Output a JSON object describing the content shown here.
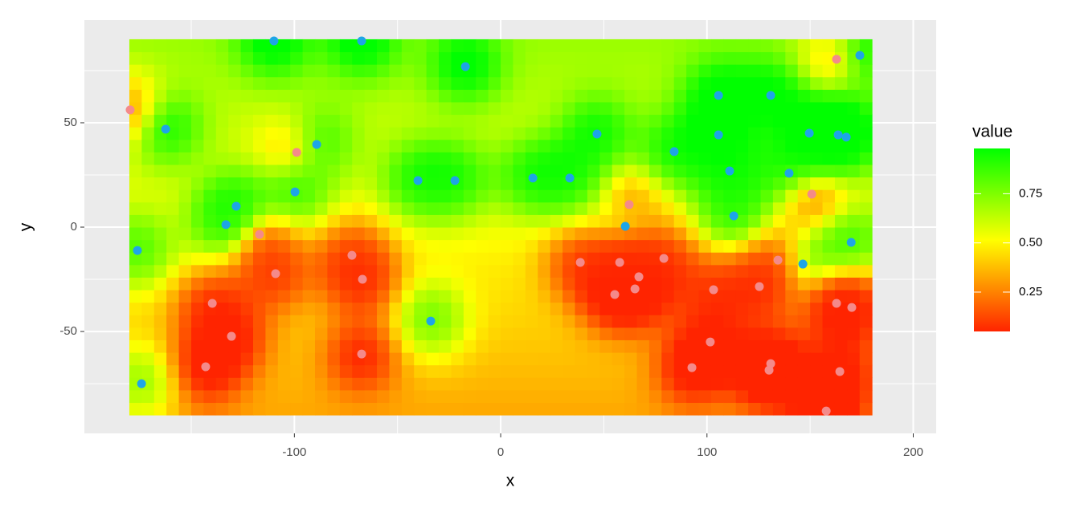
{
  "chart_data": {
    "type": "scatter",
    "x_label": "x",
    "y_label": "y",
    "xlim": [
      -201.8,
      211.1
    ],
    "ylim": [
      -98.8,
      99.2
    ],
    "xticks": [
      -100,
      0,
      100,
      200
    ],
    "yticks": [
      -50,
      0,
      50
    ],
    "grid": true,
    "raster": {
      "x": [
        -180,
        180
      ],
      "y": [
        -90,
        90
      ]
    },
    "colorbar": {
      "title": "value",
      "limits": [
        0.05,
        0.98
      ],
      "ticks": [
        0.25,
        {
          "value": 0.5,
          "label": "0.50"
        },
        0.75
      ],
      "colors": [
        "#ff2400",
        "#ffff00",
        "#00ff00"
      ]
    },
    "series": [
      {
        "color": "#1ea5e6",
        "x": [
          -109.9,
          -67.4,
          -17.1,
          174.1,
          -162.4,
          -89.2,
          -99.7,
          -128.2,
          -133.2,
          -176.1,
          -40.1,
          -22.2,
          15.6,
          33.5,
          46.7,
          84.1,
          105.6,
          130.9,
          105.6,
          111,
          113,
          139.8,
          149.6,
          163.6,
          167.5,
          169.9,
          146.5,
          60.4,
          -33.9,
          -174.1
        ],
        "values": [
          89.2,
          89.2,
          76.9,
          82.3,
          46.9,
          39.6,
          16.9,
          10,
          1.2,
          -11.2,
          22.3,
          22.3,
          23.5,
          23.5,
          44.6,
          36.2,
          63.1,
          63.1,
          44.2,
          26.9,
          5.4,
          25.8,
          45,
          44.2,
          43.1,
          -7.3,
          -17.7,
          0.4,
          -45,
          -75
        ]
      },
      {
        "color": "#f48a8a",
        "x": [
          -179.6,
          -98.9,
          -116.9,
          -109.1,
          -72.1,
          -67,
          -139.8,
          -130.5,
          -143,
          -67.4,
          38.6,
          57.7,
          55.3,
          67,
          65.1,
          62.3,
          79.1,
          103.2,
          101.6,
          92.7,
          125.4,
          134.4,
          150.8,
          162.8,
          162.8,
          170.2,
          164.4,
          130.9,
          130.1,
          157.8
        ],
        "values": [
          56.2,
          35.8,
          -3.5,
          -22.3,
          -13.5,
          -25,
          -36.5,
          -52.3,
          -66.9,
          -60.8,
          -16.9,
          -16.9,
          -32.3,
          -23.8,
          -29.6,
          10.8,
          -15,
          -30,
          -55,
          -67.3,
          -28.5,
          -15.8,
          15.8,
          80.4,
          -36.5,
          -38.5,
          -69.2,
          -65.4,
          -68.5,
          -88.1
        ]
      }
    ]
  }
}
